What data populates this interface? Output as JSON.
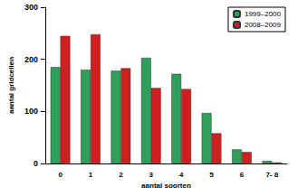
{
  "chart_data": {
    "type": "bar",
    "x_label": "aantal soorten",
    "y_label": "aantal gridcellen",
    "categories": [
      "0",
      "1",
      "2",
      "3",
      "4",
      "5",
      "6",
      "7- 8"
    ],
    "series": [
      {
        "name": "1999–2000",
        "color": "#2ea05c",
        "values": [
          185,
          180,
          178,
          203,
          172,
          97,
          27,
          5
        ]
      },
      {
        "name": "2008–2009",
        "color": "#d01f1f",
        "values": [
          245,
          248,
          183,
          145,
          143,
          58,
          22,
          2
        ]
      }
    ],
    "ylim": [
      0,
      300
    ],
    "yticks": [
      0,
      100,
      200,
      300
    ],
    "grid": false,
    "legend": "upper right"
  }
}
